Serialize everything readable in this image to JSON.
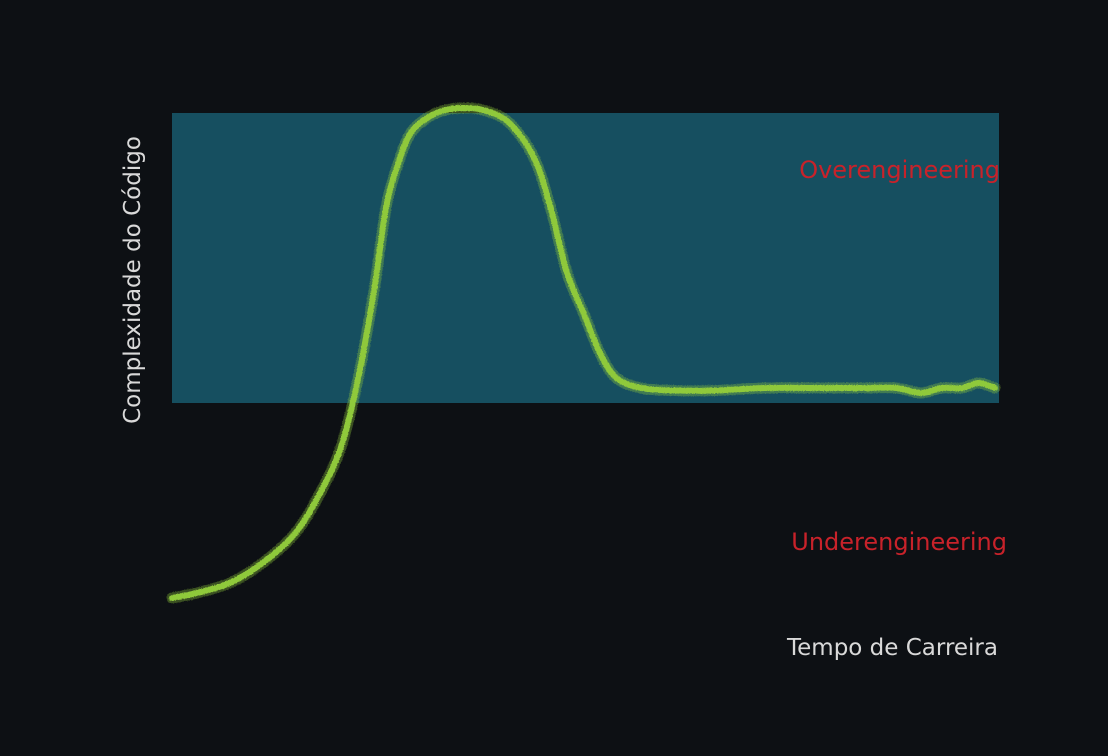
{
  "chart_data": {
    "type": "line",
    "title": "",
    "xlabel": "Tempo de Carreira",
    "ylabel": "Complexidade do Código",
    "xlim": [
      0,
      100
    ],
    "ylim": [
      0,
      100
    ],
    "grid": false,
    "legend": "none",
    "series": [
      {
        "color": "#8fc93a",
        "x": [
          0,
          3,
          7,
          11,
          15,
          18,
          20.5,
          22.5,
          24.5,
          26,
          27.5,
          29,
          31,
          33,
          35.5,
          38,
          41,
          44,
          46,
          48,
          50,
          52,
          54,
          57,
          61,
          66,
          72,
          78,
          84,
          88,
          91,
          93.5,
          96,
          98,
          100
        ],
        "y": [
          2,
          3,
          5,
          9,
          15,
          23,
          32,
          45,
          63,
          80,
          89,
          95,
          98,
          99.5,
          100,
          99.5,
          97,
          90,
          80,
          67,
          59,
          51,
          46,
          44,
          43.5,
          43.5,
          44,
          44,
          44,
          44,
          43,
          44,
          44,
          45,
          44
        ]
      }
    ],
    "bands": [
      {
        "y0": 41,
        "y1": 99,
        "color": "#164f60"
      }
    ],
    "annotations": [
      {
        "text": "Overengineering",
        "color": "#c8222a"
      },
      {
        "text": "Underengineering",
        "color": "#c8222a"
      }
    ]
  }
}
